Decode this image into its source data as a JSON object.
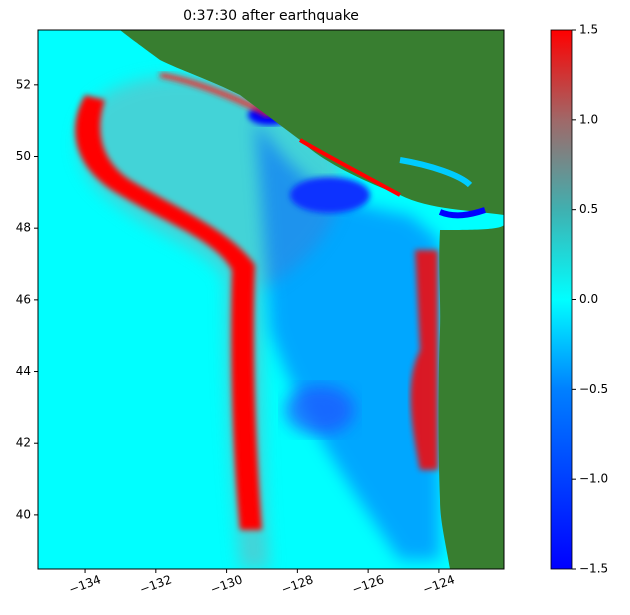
{
  "chart_data": {
    "type": "heatmap",
    "title": "0:37:30 after earthquake",
    "xlim": [
      -135.33,
      -122.16
    ],
    "ylim": [
      38.49,
      53.53
    ],
    "xticks": [
      {
        "value": -134,
        "label": "−134"
      },
      {
        "value": -132,
        "label": "−132"
      },
      {
        "value": -130,
        "label": "−130"
      },
      {
        "value": -128,
        "label": "−128"
      },
      {
        "value": -126,
        "label": "−126"
      },
      {
        "value": -124,
        "label": "−124"
      }
    ],
    "yticks": [
      40,
      42,
      44,
      46,
      48,
      50,
      52
    ],
    "clim": [
      -1.5,
      1.5
    ],
    "cticks": [
      {
        "value": -1.5,
        "label": "−1.5"
      },
      {
        "value": -1.0,
        "label": "−1.0"
      },
      {
        "value": -0.5,
        "label": "−0.5"
      },
      {
        "value": 0.0,
        "label": "0.0"
      },
      0.5,
      {
        "value": 1.0,
        "label": "1.0"
      },
      1.5
    ],
    "colormap": [
      {
        "value": -1.5,
        "color": "#0000ff"
      },
      {
        "value": -0.5,
        "color": "#0080ff"
      },
      {
        "value": 0.0,
        "color": "#00ffff"
      },
      {
        "value": 0.5,
        "color": "#40b0b0"
      },
      {
        "value": 1.0,
        "color": "#a06868"
      },
      {
        "value": 1.5,
        "color": "#ff0000"
      }
    ],
    "land_color": "#387e30"
  }
}
